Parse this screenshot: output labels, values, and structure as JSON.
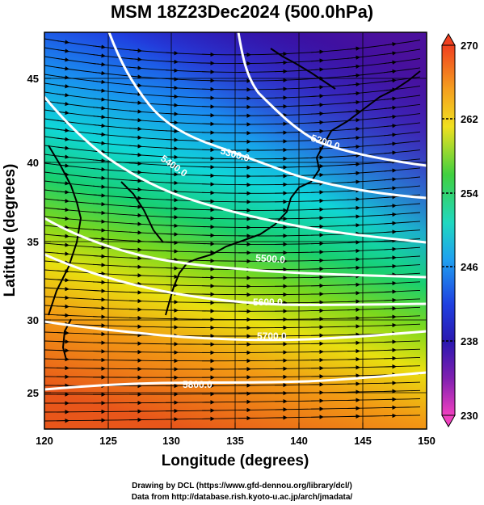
{
  "title": "MSM 18Z23Dec2024 (500.0hPa)",
  "x_axis": {
    "label": "Longitude (degrees)",
    "range": [
      120,
      150
    ],
    "ticks": [
      "120",
      "125",
      "130",
      "135",
      "140",
      "145",
      "150"
    ]
  },
  "y_axis": {
    "label": "Latitude  (degrees)",
    "range": [
      22.5,
      47.5
    ],
    "ticks": [
      "25",
      "30",
      "35",
      "40",
      "45"
    ]
  },
  "colorbar": {
    "min": 230,
    "max": 270,
    "ticks": [
      "230",
      "238",
      "246",
      "254",
      "262",
      "270"
    ]
  },
  "contours": [
    {
      "label": "5200.0"
    },
    {
      "label": "5300.0"
    },
    {
      "label": "5400.0"
    },
    {
      "label": "5500.0"
    },
    {
      "label": "5600.0"
    },
    {
      "label": "5700.0"
    },
    {
      "label": "5800.0"
    }
  ],
  "credits": {
    "line1": "Drawing by DCL (https://www.gfd-dennou.org/library/dcl/)",
    "line2": "Data from http://database.rish.kyoto-u.ac.jp/arch/jmadata/"
  }
}
